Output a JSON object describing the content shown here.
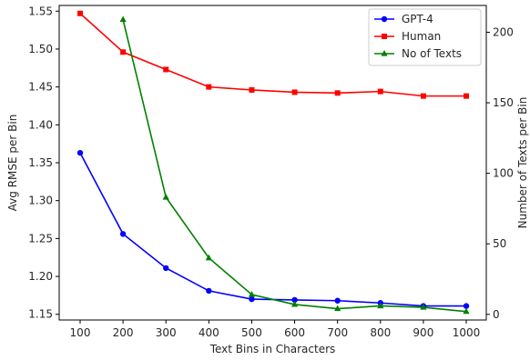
{
  "chart_data": {
    "type": "line",
    "title": "",
    "xlabel": "Text Bins in Characters",
    "ylabel": "Avg RMSE per Bin",
    "y2label": "Number of Texts per Bin",
    "x": [
      100,
      200,
      300,
      400,
      500,
      600,
      700,
      800,
      900,
      1000
    ],
    "xticks": [
      "100",
      "200",
      "300",
      "400",
      "500",
      "600",
      "700",
      "800",
      "900",
      "1000"
    ],
    "ylim": [
      1.1425,
      1.5575
    ],
    "yticks": [
      "1.15",
      "1.20",
      "1.25",
      "1.30",
      "1.35",
      "1.40",
      "1.45",
      "1.50",
      "1.55"
    ],
    "y2lim": [
      -4,
      219
    ],
    "y2ticks": [
      "0",
      "50",
      "100",
      "150",
      "200"
    ],
    "grid": false,
    "legend_position": "top-right",
    "series": [
      {
        "name": "GPT-4",
        "axis": "left",
        "color": "#0000ff",
        "marker": "circle",
        "values": [
          1.363,
          1.256,
          1.211,
          1.181,
          1.17,
          1.169,
          1.168,
          1.165,
          1.161,
          1.161
        ]
      },
      {
        "name": "Human",
        "axis": "left",
        "color": "#ff0000",
        "marker": "square",
        "values": [
          1.547,
          1.496,
          1.473,
          1.45,
          1.446,
          1.443,
          1.442,
          1.444,
          1.438,
          1.438
        ]
      },
      {
        "name": "No of Texts",
        "axis": "right",
        "color": "#008000",
        "marker": "triangle",
        "x": [
          200,
          300,
          400,
          500,
          600,
          700,
          800,
          900,
          1000
        ],
        "values": [
          209,
          83,
          40,
          14,
          7,
          4,
          6,
          5,
          2
        ]
      }
    ]
  }
}
